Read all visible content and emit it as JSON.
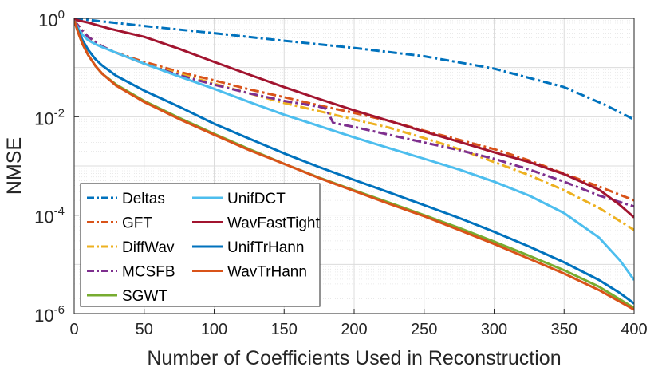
{
  "chart_data": {
    "type": "line",
    "title": "",
    "xlabel": "Number of Coefficients Used in Reconstruction",
    "ylabel": "NMSE",
    "xlim": [
      0,
      400
    ],
    "ylim": [
      1e-06,
      1
    ],
    "yscale": "log",
    "grid": true,
    "x_ticks": [
      "0",
      "50",
      "100",
      "150",
      "200",
      "250",
      "300",
      "350",
      "400"
    ],
    "y_ticks": [
      {
        "value": 1e-06,
        "base": "10",
        "exp": "-6"
      },
      {
        "value": 0.0001,
        "base": "10",
        "exp": "-4"
      },
      {
        "value": 0.01,
        "base": "10",
        "exp": "-2"
      },
      {
        "value": 1,
        "base": "10",
        "exp": "0"
      }
    ],
    "legend": {
      "location": "bottom-left",
      "columns": 2
    },
    "series": [
      {
        "name": "Deltas",
        "color": "#0072BD",
        "dash": "dashdot",
        "x": [
          0,
          50,
          100,
          150,
          200,
          250,
          300,
          350,
          380,
          400
        ],
        "y": [
          1.0,
          0.7,
          0.5,
          0.35,
          0.25,
          0.17,
          0.095,
          0.04,
          0.017,
          0.0088
        ]
      },
      {
        "name": "GFT",
        "color": "#D95319",
        "dash": "dashdot",
        "x": [
          0,
          5,
          10,
          20,
          30,
          50,
          75,
          100,
          125,
          150,
          175,
          200,
          225,
          250,
          275,
          300,
          325,
          350,
          375,
          400
        ],
        "y": [
          0.9,
          0.6,
          0.42,
          0.27,
          0.2,
          0.13,
          0.082,
          0.055,
          0.036,
          0.025,
          0.017,
          0.012,
          0.0082,
          0.0052,
          0.0034,
          0.0022,
          0.0013,
          0.0007,
          0.00038,
          0.0002
        ]
      },
      {
        "name": "DiffWav",
        "color": "#EDB120",
        "dash": "dashdot",
        "x": [
          0,
          5,
          10,
          20,
          30,
          50,
          75,
          100,
          125,
          150,
          175,
          200,
          225,
          250,
          275,
          300,
          325,
          350,
          375,
          400
        ],
        "y": [
          0.9,
          0.6,
          0.42,
          0.27,
          0.2,
          0.12,
          0.075,
          0.047,
          0.03,
          0.019,
          0.013,
          0.0088,
          0.006,
          0.0037,
          0.0022,
          0.0012,
          0.00065,
          0.00032,
          0.00014,
          5e-05
        ]
      },
      {
        "name": "MCSFB",
        "color": "#7E2F8E",
        "dash": "dashdot",
        "x": [
          0,
          5,
          10,
          20,
          30,
          50,
          75,
          100,
          125,
          150,
          175,
          180,
          185,
          200,
          225,
          250,
          275,
          300,
          325,
          350,
          375,
          400
        ],
        "y": [
          0.9,
          0.6,
          0.42,
          0.27,
          0.2,
          0.12,
          0.07,
          0.045,
          0.03,
          0.021,
          0.016,
          0.0145,
          0.0075,
          0.0062,
          0.0043,
          0.003,
          0.0021,
          0.0014,
          0.00085,
          0.00048,
          0.00025,
          0.00015
        ]
      },
      {
        "name": "SGWT",
        "color": "#77AC30",
        "dash": "solid",
        "x": [
          0,
          3,
          6,
          10,
          15,
          20,
          30,
          50,
          75,
          100,
          125,
          150,
          175,
          200,
          225,
          250,
          275,
          300,
          325,
          350,
          375,
          400
        ],
        "y": [
          0.9,
          0.5,
          0.3,
          0.18,
          0.11,
          0.075,
          0.045,
          0.021,
          0.0095,
          0.0045,
          0.0022,
          0.0011,
          0.00058,
          0.00032,
          0.00018,
          0.0001,
          5.5e-05,
          2.9e-05,
          1.5e-05,
          7.6e-06,
          3.5e-06,
          1.3e-06
        ]
      },
      {
        "name": "UnifDCT",
        "color": "#4DBEEE",
        "dash": "solid",
        "x": [
          0,
          3,
          6,
          10,
          15,
          20,
          30,
          50,
          75,
          100,
          125,
          150,
          175,
          200,
          225,
          250,
          275,
          300,
          325,
          350,
          375,
          390,
          400
        ],
        "y": [
          0.9,
          0.62,
          0.46,
          0.36,
          0.3,
          0.26,
          0.2,
          0.12,
          0.066,
          0.037,
          0.02,
          0.011,
          0.0065,
          0.0038,
          0.0023,
          0.0014,
          0.00085,
          0.00048,
          0.00025,
          0.00011,
          3.5e-05,
          1.2e-05,
          4.8e-06
        ]
      },
      {
        "name": "WavFastTight",
        "color": "#A2142F",
        "dash": "solid",
        "x": [
          0,
          10,
          25,
          50,
          75,
          100,
          125,
          150,
          175,
          200,
          225,
          250,
          275,
          300,
          325,
          350,
          375,
          390,
          400
        ],
        "y": [
          0.95,
          0.82,
          0.62,
          0.42,
          0.24,
          0.13,
          0.072,
          0.04,
          0.023,
          0.0135,
          0.0082,
          0.005,
          0.0031,
          0.0019,
          0.0012,
          0.00068,
          0.00033,
          0.00016,
          9e-05
        ]
      },
      {
        "name": "UnifTrHann",
        "color": "#0072BD",
        "dash": "solid",
        "x": [
          0,
          3,
          6,
          10,
          15,
          20,
          30,
          50,
          75,
          100,
          125,
          150,
          175,
          200,
          225,
          250,
          275,
          300,
          325,
          350,
          375,
          390,
          400
        ],
        "y": [
          0.9,
          0.55,
          0.36,
          0.23,
          0.15,
          0.11,
          0.068,
          0.034,
          0.016,
          0.0072,
          0.0036,
          0.0018,
          0.00095,
          0.00052,
          0.00029,
          0.00016,
          8.8e-05,
          4.6e-05,
          2.3e-05,
          1.1e-05,
          4.8e-06,
          2.6e-06,
          1.6e-06
        ]
      },
      {
        "name": "WavTrHann",
        "color": "#D95319",
        "dash": "solid",
        "x": [
          0,
          3,
          6,
          10,
          15,
          20,
          30,
          50,
          75,
          100,
          125,
          150,
          175,
          200,
          225,
          250,
          275,
          300,
          325,
          350,
          375,
          400
        ],
        "y": [
          0.9,
          0.5,
          0.3,
          0.18,
          0.11,
          0.075,
          0.043,
          0.02,
          0.009,
          0.0043,
          0.0021,
          0.0011,
          0.00057,
          0.00031,
          0.00017,
          9.5e-05,
          5e-05,
          2.6e-05,
          1.3e-05,
          6.5e-06,
          3e-06,
          1.2e-06
        ]
      }
    ]
  }
}
